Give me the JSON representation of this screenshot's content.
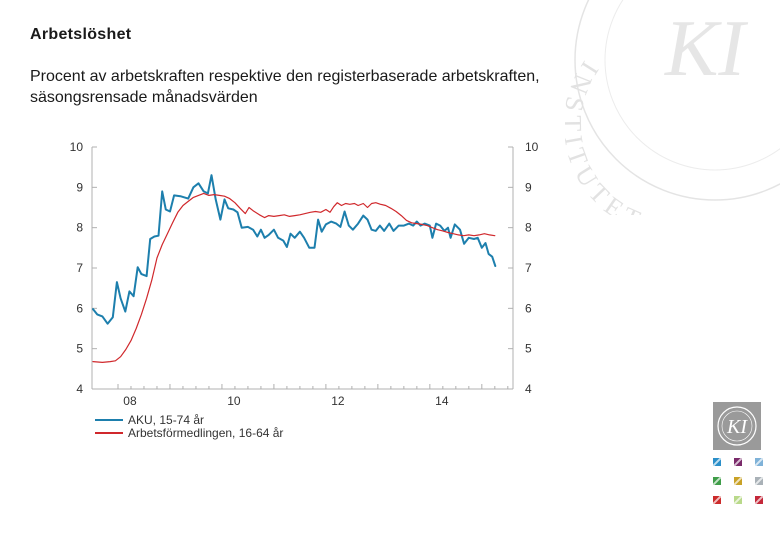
{
  "title": "Arbetslöshet",
  "subtitle": "Procent av arbetskraften respektive den registerbaserade arbetskraften, säsongsrensade månadsvärden",
  "logo_text": "KI",
  "watermark_text": "INSTITUTET",
  "colors": {
    "aku": "#1d7fad",
    "af": "#d0282c",
    "axis": "#b0b0b0",
    "swatches": [
      "#2b8fc9",
      "#7a2a6a",
      "#7fb2d8",
      "#3f9d49",
      "#c9a227",
      "#a9b1b7",
      "#cc2b2b",
      "#b9d98a",
      "#c4283a"
    ]
  },
  "chart_data": {
    "type": "line",
    "title": "",
    "xlabel": "",
    "ylabel": "",
    "xlim": [
      2007.5,
      2015.6
    ],
    "ylim": [
      4,
      10
    ],
    "x_ticks": [
      2008,
      2010,
      2012,
      2014
    ],
    "x_tick_labels": [
      "08",
      "10",
      "12",
      "14"
    ],
    "y_ticks": [
      4,
      5,
      6,
      7,
      8,
      9,
      10
    ],
    "y_tick_labels_left": [
      "4",
      "5",
      "6",
      "7",
      "8",
      "9",
      "10"
    ],
    "y_tick_labels_right": [
      "4",
      "5",
      "6",
      "7",
      "8",
      "9",
      "10"
    ],
    "grid": false,
    "legend_position": "bottom-left",
    "series": [
      {
        "name": "AKU, 15-74 år",
        "color": "#1d7fad",
        "points": [
          [
            2007.52,
            5.98
          ],
          [
            2007.6,
            5.85
          ],
          [
            2007.7,
            5.8
          ],
          [
            2007.8,
            5.62
          ],
          [
            2007.9,
            5.78
          ],
          [
            2007.98,
            6.65
          ],
          [
            2008.05,
            6.25
          ],
          [
            2008.14,
            5.92
          ],
          [
            2008.22,
            6.42
          ],
          [
            2008.3,
            6.3
          ],
          [
            2008.38,
            7.02
          ],
          [
            2008.45,
            6.85
          ],
          [
            2008.55,
            6.8
          ],
          [
            2008.62,
            7.72
          ],
          [
            2008.7,
            7.78
          ],
          [
            2008.78,
            7.8
          ],
          [
            2008.85,
            8.9
          ],
          [
            2008.92,
            8.45
          ],
          [
            2009.0,
            8.4
          ],
          [
            2009.08,
            8.8
          ],
          [
            2009.2,
            8.78
          ],
          [
            2009.35,
            8.72
          ],
          [
            2009.45,
            9.0
          ],
          [
            2009.55,
            9.1
          ],
          [
            2009.65,
            8.9
          ],
          [
            2009.73,
            8.85
          ],
          [
            2009.8,
            9.3
          ],
          [
            2009.88,
            8.7
          ],
          [
            2009.97,
            8.2
          ],
          [
            2010.05,
            8.7
          ],
          [
            2010.12,
            8.48
          ],
          [
            2010.22,
            8.45
          ],
          [
            2010.3,
            8.38
          ],
          [
            2010.38,
            8.0
          ],
          [
            2010.5,
            8.02
          ],
          [
            2010.6,
            7.95
          ],
          [
            2010.68,
            7.78
          ],
          [
            2010.75,
            7.95
          ],
          [
            2010.82,
            7.75
          ],
          [
            2010.9,
            7.82
          ],
          [
            2011.0,
            7.95
          ],
          [
            2011.08,
            7.75
          ],
          [
            2011.18,
            7.68
          ],
          [
            2011.25,
            7.52
          ],
          [
            2011.32,
            7.85
          ],
          [
            2011.4,
            7.75
          ],
          [
            2011.5,
            7.9
          ],
          [
            2011.58,
            7.75
          ],
          [
            2011.68,
            7.5
          ],
          [
            2011.78,
            7.5
          ],
          [
            2011.85,
            8.2
          ],
          [
            2011.92,
            7.9
          ],
          [
            2012.0,
            8.08
          ],
          [
            2012.1,
            8.15
          ],
          [
            2012.2,
            8.1
          ],
          [
            2012.28,
            8.02
          ],
          [
            2012.36,
            8.4
          ],
          [
            2012.44,
            8.05
          ],
          [
            2012.52,
            7.95
          ],
          [
            2012.62,
            8.1
          ],
          [
            2012.72,
            8.3
          ],
          [
            2012.8,
            8.2
          ],
          [
            2012.88,
            7.95
          ],
          [
            2012.96,
            7.92
          ],
          [
            2013.04,
            8.05
          ],
          [
            2013.12,
            7.92
          ],
          [
            2013.22,
            8.1
          ],
          [
            2013.3,
            7.92
          ],
          [
            2013.4,
            8.05
          ],
          [
            2013.5,
            8.05
          ],
          [
            2013.6,
            8.1
          ],
          [
            2013.68,
            8.05
          ],
          [
            2013.75,
            8.15
          ],
          [
            2013.82,
            8.05
          ],
          [
            2013.9,
            8.1
          ],
          [
            2014.0,
            8.05
          ],
          [
            2014.05,
            7.75
          ],
          [
            2014.12,
            8.1
          ],
          [
            2014.2,
            8.05
          ],
          [
            2014.28,
            7.92
          ],
          [
            2014.35,
            8.0
          ],
          [
            2014.4,
            7.75
          ],
          [
            2014.48,
            8.08
          ],
          [
            2014.58,
            7.95
          ],
          [
            2014.66,
            7.6
          ],
          [
            2014.75,
            7.75
          ],
          [
            2014.85,
            7.72
          ],
          [
            2014.92,
            7.75
          ],
          [
            2015.0,
            7.5
          ],
          [
            2015.07,
            7.62
          ],
          [
            2015.13,
            7.35
          ],
          [
            2015.2,
            7.28
          ],
          [
            2015.26,
            7.05
          ]
        ]
      },
      {
        "name": "Arbetsförmedlingen, 16-64 år",
        "color": "#d0282c",
        "points": [
          [
            2007.52,
            4.68
          ],
          [
            2007.7,
            4.66
          ],
          [
            2007.85,
            4.68
          ],
          [
            2007.95,
            4.7
          ],
          [
            2008.05,
            4.8
          ],
          [
            2008.15,
            4.98
          ],
          [
            2008.25,
            5.2
          ],
          [
            2008.35,
            5.5
          ],
          [
            2008.45,
            5.85
          ],
          [
            2008.55,
            6.25
          ],
          [
            2008.65,
            6.7
          ],
          [
            2008.75,
            7.25
          ],
          [
            2008.85,
            7.58
          ],
          [
            2008.95,
            7.85
          ],
          [
            2009.05,
            8.12
          ],
          [
            2009.15,
            8.38
          ],
          [
            2009.25,
            8.55
          ],
          [
            2009.35,
            8.65
          ],
          [
            2009.45,
            8.75
          ],
          [
            2009.55,
            8.8
          ],
          [
            2009.65,
            8.85
          ],
          [
            2009.75,
            8.8
          ],
          [
            2009.85,
            8.82
          ],
          [
            2009.95,
            8.8
          ],
          [
            2010.05,
            8.78
          ],
          [
            2010.15,
            8.72
          ],
          [
            2010.25,
            8.62
          ],
          [
            2010.35,
            8.48
          ],
          [
            2010.45,
            8.35
          ],
          [
            2010.52,
            8.5
          ],
          [
            2010.6,
            8.42
          ],
          [
            2010.72,
            8.32
          ],
          [
            2010.82,
            8.25
          ],
          [
            2010.9,
            8.3
          ],
          [
            2011.0,
            8.28
          ],
          [
            2011.1,
            8.3
          ],
          [
            2011.2,
            8.32
          ],
          [
            2011.3,
            8.28
          ],
          [
            2011.4,
            8.3
          ],
          [
            2011.5,
            8.32
          ],
          [
            2011.6,
            8.35
          ],
          [
            2011.7,
            8.38
          ],
          [
            2011.8,
            8.4
          ],
          [
            2011.9,
            8.38
          ],
          [
            2012.0,
            8.45
          ],
          [
            2012.08,
            8.38
          ],
          [
            2012.15,
            8.52
          ],
          [
            2012.22,
            8.62
          ],
          [
            2012.3,
            8.55
          ],
          [
            2012.38,
            8.6
          ],
          [
            2012.46,
            8.58
          ],
          [
            2012.55,
            8.6
          ],
          [
            2012.62,
            8.55
          ],
          [
            2012.72,
            8.6
          ],
          [
            2012.8,
            8.5
          ],
          [
            2012.88,
            8.6
          ],
          [
            2012.96,
            8.62
          ],
          [
            2013.05,
            8.58
          ],
          [
            2013.15,
            8.55
          ],
          [
            2013.25,
            8.48
          ],
          [
            2013.35,
            8.4
          ],
          [
            2013.45,
            8.3
          ],
          [
            2013.55,
            8.18
          ],
          [
            2013.65,
            8.12
          ],
          [
            2013.75,
            8.1
          ],
          [
            2013.85,
            8.08
          ],
          [
            2013.95,
            8.05
          ],
          [
            2014.05,
            8.0
          ],
          [
            2014.15,
            7.95
          ],
          [
            2014.25,
            7.92
          ],
          [
            2014.35,
            7.88
          ],
          [
            2014.45,
            7.85
          ],
          [
            2014.55,
            7.82
          ],
          [
            2014.65,
            7.8
          ],
          [
            2014.75,
            7.82
          ],
          [
            2014.85,
            7.8
          ],
          [
            2014.95,
            7.82
          ],
          [
            2015.05,
            7.85
          ],
          [
            2015.15,
            7.82
          ],
          [
            2015.25,
            7.8
          ]
        ]
      }
    ]
  }
}
